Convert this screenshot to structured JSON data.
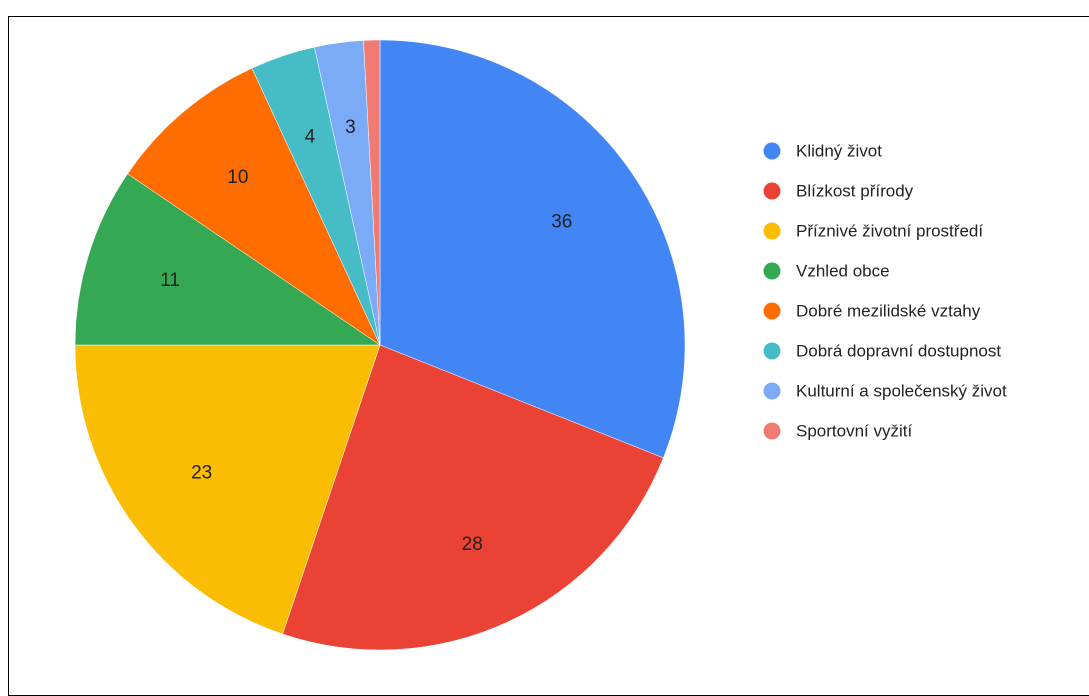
{
  "chart_data": {
    "type": "pie",
    "title": "",
    "categories": [
      "Klidný život",
      "Blízkost přírody",
      "Příznivé životní prostředí",
      "Vzhled obce",
      "Dobré mezilidské vztahy",
      "Dobrá dopravní dostupnost",
      "Kulturní a společenský život",
      "Sportovní vyžití"
    ],
    "values": [
      36,
      28,
      23,
      11,
      10,
      4,
      3,
      1
    ],
    "data_labels": [
      "36",
      "28",
      "23",
      "11",
      "10",
      "4",
      "3",
      ""
    ],
    "colors": [
      "#4285f4",
      "#ea4335",
      "#fbbc04",
      "#34a853",
      "#ff6d01",
      "#46bdc6",
      "#7baaf7",
      "#f07b72"
    ],
    "start_angle": "12 o'clock",
    "direction": "clockwise",
    "legend_position": "right"
  }
}
